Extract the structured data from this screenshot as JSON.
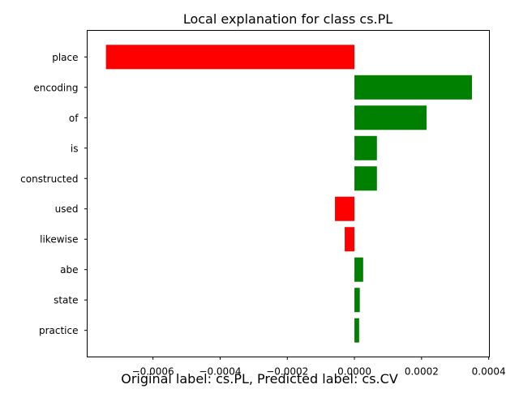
{
  "chart_data": {
    "type": "bar",
    "orientation": "horizontal",
    "title": "Local explanation for class cs.PL",
    "categories": [
      "place",
      "encoding",
      "of",
      "is",
      "constructed",
      "used",
      "likewise",
      "abe",
      "state",
      "practice"
    ],
    "values": [
      -0.00074,
      0.00035,
      0.000215,
      6.7e-05,
      6.7e-05,
      -5.8e-05,
      -2.9e-05,
      2.6e-05,
      1.6e-05,
      1.4e-05
    ],
    "colors": {
      "positive": "#008000",
      "negative": "#ff0000"
    },
    "xlim": [
      -0.000796,
      0.000402
    ],
    "x_ticks": [
      "−0.0006",
      "−0.0004",
      "−0.0002",
      "0.0000",
      "0.0002",
      "0.0004"
    ],
    "x_tick_values": [
      -0.0006,
      -0.0004,
      -0.0002,
      0.0,
      0.0002,
      0.0004
    ],
    "xlabel": "",
    "ylabel": "",
    "grid": false
  },
  "caption": "Original label: cs.PL, Predicted label: cs.CV"
}
